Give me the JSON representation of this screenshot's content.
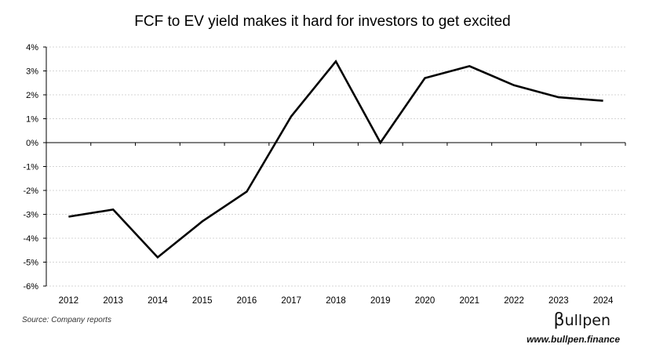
{
  "chart_data": {
    "type": "line",
    "title": "FCF to EV yield makes it hard for investors to get excited",
    "xlabel": "",
    "ylabel": "",
    "categories": [
      "2012",
      "2013",
      "2014",
      "2015",
      "2016",
      "2017",
      "2018",
      "2019",
      "2020",
      "2021",
      "2022",
      "2023",
      "2024"
    ],
    "series": [
      {
        "values": [
          -3.1,
          -2.8,
          -4.8,
          -3.3,
          -2.05,
          1.1,
          3.4,
          0.0,
          2.7,
          3.2,
          2.4,
          1.9,
          1.75
        ],
        "color": "#000000"
      }
    ],
    "ylim": [
      -6,
      4
    ],
    "yticks": [
      "4%",
      "3%",
      "2%",
      "1%",
      "0%",
      "-1%",
      "-2%",
      "-3%",
      "-4%",
      "-5%",
      "-6%"
    ],
    "grid": true,
    "legend": "none"
  },
  "footer": {
    "source": "Source: Company reports",
    "brand_beta": "β",
    "brand_rest": "ullpen",
    "url": "www.bullpen.finance"
  }
}
